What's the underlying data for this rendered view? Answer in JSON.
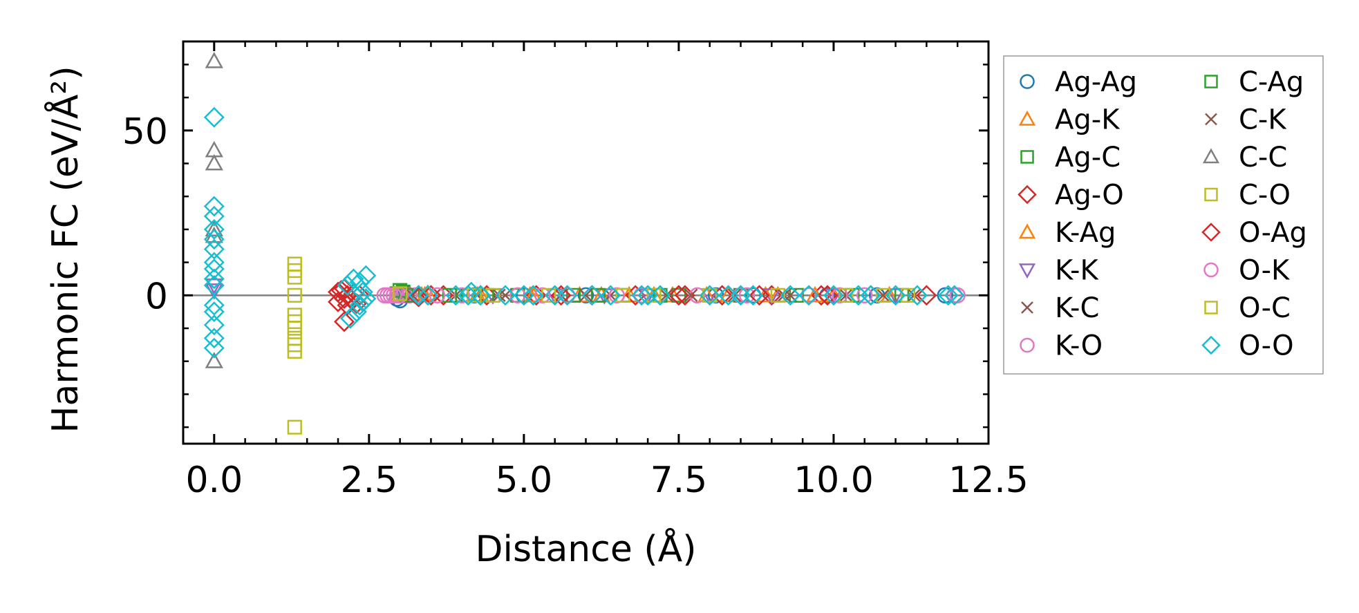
{
  "chart_data": {
    "type": "scatter",
    "xlabel": "Distance (Å)",
    "ylabel": "Harmonic FC (eV/Å²)",
    "xlim": [
      -0.5,
      12.5
    ],
    "ylim": [
      -45,
      77
    ],
    "xticks": [
      0.0,
      2.5,
      5.0,
      7.5,
      10.0,
      12.5
    ],
    "xtick_labels": [
      "0.0",
      "2.5",
      "5.0",
      "7.5",
      "10.0",
      "12.5"
    ],
    "xminor_step": 0.5,
    "yticks": [
      0,
      50
    ],
    "ytick_labels": [
      "0",
      "50"
    ],
    "yminor_step": 10,
    "reference_line_y": 0,
    "legend_position": "outside-right",
    "legend_columns": 2,
    "series": [
      {
        "name": "Ag-Ag",
        "marker": "circle",
        "color": "#1f77b4",
        "points": [
          [
            2.95,
            -1
          ],
          [
            3.0,
            -1.5
          ],
          [
            3.1,
            0.5
          ],
          [
            4.2,
            0
          ],
          [
            5.0,
            0
          ],
          [
            6.0,
            0
          ],
          [
            6.9,
            0
          ],
          [
            8.1,
            0
          ],
          [
            8.7,
            0
          ],
          [
            9.9,
            0
          ],
          [
            10.7,
            0
          ],
          [
            11.8,
            0
          ]
        ]
      },
      {
        "name": "Ag-K",
        "marker": "triangle-up",
        "color": "#ff7f0e",
        "points": [
          [
            3.35,
            0
          ],
          [
            3.45,
            0.5
          ],
          [
            4.3,
            0
          ],
          [
            5.1,
            0
          ],
          [
            5.9,
            0
          ],
          [
            6.7,
            0
          ],
          [
            7.4,
            0
          ],
          [
            8.3,
            0
          ],
          [
            9.1,
            0
          ],
          [
            10.0,
            0
          ],
          [
            10.9,
            0
          ]
        ]
      },
      {
        "name": "Ag-C",
        "marker": "square",
        "color": "#2ca02c",
        "points": [
          [
            2.95,
            0.5
          ],
          [
            3.05,
            1
          ],
          [
            3.2,
            0
          ],
          [
            4.1,
            0
          ],
          [
            4.9,
            0
          ],
          [
            5.8,
            0
          ],
          [
            6.6,
            0
          ],
          [
            7.5,
            0
          ],
          [
            8.5,
            0
          ],
          [
            9.4,
            0
          ],
          [
            10.3,
            0
          ],
          [
            11.1,
            0
          ]
        ]
      },
      {
        "name": "Ag-O",
        "marker": "diamond",
        "color": "#d62728",
        "points": [
          [
            2.0,
            1
          ],
          [
            2.0,
            -2
          ],
          [
            2.1,
            -8
          ],
          [
            2.1,
            2
          ],
          [
            2.15,
            -3
          ],
          [
            2.2,
            -1
          ],
          [
            2.25,
            0.5
          ],
          [
            2.3,
            -2.5
          ],
          [
            2.35,
            0
          ],
          [
            3.3,
            0
          ],
          [
            3.7,
            0
          ],
          [
            4.4,
            0
          ],
          [
            5.2,
            0
          ],
          [
            6.1,
            0
          ],
          [
            6.8,
            0
          ],
          [
            7.6,
            0
          ],
          [
            8.2,
            0
          ],
          [
            9.0,
            0
          ],
          [
            9.8,
            0
          ],
          [
            10.6,
            0
          ],
          [
            11.5,
            0
          ]
        ]
      },
      {
        "name": "K-Ag",
        "marker": "triangle-up",
        "color": "#ff7f0e",
        "points": [
          [
            3.4,
            0
          ],
          [
            4.25,
            0
          ],
          [
            5.15,
            0
          ],
          [
            6.25,
            0
          ],
          [
            7.1,
            0
          ],
          [
            7.95,
            0
          ],
          [
            8.9,
            0
          ],
          [
            9.7,
            0
          ]
        ]
      },
      {
        "name": "K-K",
        "marker": "triangle-down",
        "color": "#9467bd",
        "points": [
          [
            0.0,
            3
          ],
          [
            0.0,
            1.5
          ],
          [
            4.5,
            0
          ],
          [
            5.5,
            0
          ],
          [
            6.3,
            0
          ],
          [
            7.0,
            0
          ],
          [
            8.0,
            0
          ],
          [
            9.0,
            0
          ],
          [
            10.0,
            0
          ],
          [
            11.0,
            0
          ]
        ]
      },
      {
        "name": "K-C",
        "marker": "x",
        "color": "#8c564b",
        "points": [
          [
            3.1,
            0
          ],
          [
            3.9,
            0
          ],
          [
            4.7,
            0
          ],
          [
            5.6,
            0
          ],
          [
            6.4,
            0
          ],
          [
            7.3,
            0
          ],
          [
            8.4,
            0
          ],
          [
            9.3,
            0
          ],
          [
            10.2,
            0
          ],
          [
            11.3,
            0
          ]
        ]
      },
      {
        "name": "K-O",
        "marker": "circle",
        "color": "#e377c2",
        "points": [
          [
            2.75,
            0
          ],
          [
            2.85,
            0
          ],
          [
            2.95,
            0
          ],
          [
            3.05,
            0
          ],
          [
            3.15,
            0
          ],
          [
            3.25,
            0
          ],
          [
            4.0,
            0
          ],
          [
            4.9,
            0
          ],
          [
            5.7,
            0
          ],
          [
            6.5,
            0
          ],
          [
            7.8,
            0
          ],
          [
            8.6,
            0
          ],
          [
            9.6,
            0
          ],
          [
            10.5,
            0
          ],
          [
            12.0,
            0
          ]
        ]
      },
      {
        "name": "C-Ag",
        "marker": "square",
        "color": "#2ca02c",
        "points": [
          [
            3.0,
            1.5
          ],
          [
            3.1,
            0
          ],
          [
            3.8,
            0
          ],
          [
            4.4,
            0
          ],
          [
            6.2,
            0
          ],
          [
            7.2,
            0
          ]
        ]
      },
      {
        "name": "C-K",
        "marker": "x",
        "color": "#8c564b",
        "points": [
          [
            3.2,
            0
          ],
          [
            4.6,
            0
          ],
          [
            6.0,
            0
          ],
          [
            7.7,
            0
          ],
          [
            9.2,
            0
          ],
          [
            10.8,
            0
          ]
        ]
      },
      {
        "name": "C-C",
        "marker": "triangle-up",
        "color": "#7f7f7f",
        "points": [
          [
            0.0,
            71
          ],
          [
            0.0,
            44
          ],
          [
            0.0,
            40
          ],
          [
            0.0,
            20
          ],
          [
            0.0,
            18
          ],
          [
            0.0,
            -20
          ]
        ]
      },
      {
        "name": "C-O",
        "marker": "square",
        "color": "#bcbd22",
        "points": [
          [
            1.3,
            9.5
          ],
          [
            1.3,
            7.5
          ],
          [
            1.3,
            5.5
          ],
          [
            1.3,
            0
          ],
          [
            1.3,
            -6
          ],
          [
            1.3,
            -8
          ],
          [
            1.3,
            -10
          ],
          [
            1.3,
            -13
          ],
          [
            1.3,
            -15
          ],
          [
            1.3,
            -17
          ],
          [
            1.3,
            -40
          ]
        ]
      },
      {
        "name": "O-Ag",
        "marker": "diamond",
        "color": "#d62728",
        "points": [
          [
            2.05,
            1.5
          ],
          [
            2.1,
            -1
          ],
          [
            2.15,
            0
          ],
          [
            3.3,
            -0.5
          ],
          [
            3.5,
            0
          ],
          [
            4.3,
            0
          ],
          [
            5.6,
            0
          ],
          [
            7.5,
            0
          ],
          [
            8.8,
            0
          ],
          [
            9.9,
            0
          ]
        ]
      },
      {
        "name": "O-K",
        "marker": "circle",
        "color": "#e377c2",
        "points": [
          [
            2.8,
            0
          ],
          [
            2.9,
            0
          ],
          [
            3.0,
            0
          ],
          [
            3.6,
            0
          ],
          [
            5.3,
            0
          ],
          [
            6.9,
            0
          ],
          [
            8.5,
            0
          ],
          [
            10.1,
            0
          ],
          [
            11.95,
            0
          ]
        ]
      },
      {
        "name": "O-C",
        "marker": "square",
        "color": "#bcbd22",
        "points": [
          [
            3.0,
            0.5
          ],
          [
            4.2,
            0
          ],
          [
            4.5,
            0
          ],
          [
            5.4,
            0
          ],
          [
            6.6,
            0
          ],
          [
            7.1,
            0
          ],
          [
            8.0,
            0
          ],
          [
            9.1,
            0
          ],
          [
            10.2,
            0
          ],
          [
            10.8,
            0
          ],
          [
            11.2,
            0
          ]
        ]
      },
      {
        "name": "O-O",
        "marker": "diamond",
        "color": "#17becf",
        "points": [
          [
            0.0,
            54
          ],
          [
            0.0,
            27
          ],
          [
            0.0,
            24
          ],
          [
            0.0,
            20
          ],
          [
            0.0,
            17
          ],
          [
            0.0,
            14
          ],
          [
            0.0,
            10
          ],
          [
            0.0,
            8
          ],
          [
            0.0,
            5
          ],
          [
            0.0,
            3
          ],
          [
            0.0,
            -3
          ],
          [
            0.0,
            -5
          ],
          [
            0.0,
            -9
          ],
          [
            0.0,
            -13
          ],
          [
            0.0,
            -16
          ],
          [
            2.15,
            3
          ],
          [
            2.2,
            -7
          ],
          [
            2.25,
            5
          ],
          [
            2.3,
            -5
          ],
          [
            2.35,
            4
          ],
          [
            2.35,
            -3
          ],
          [
            2.4,
            1
          ],
          [
            2.4,
            -2
          ],
          [
            2.45,
            6
          ],
          [
            2.45,
            -1
          ],
          [
            3.3,
            0
          ],
          [
            3.45,
            0
          ],
          [
            3.9,
            0
          ],
          [
            4.1,
            0
          ],
          [
            4.15,
            1
          ],
          [
            4.3,
            0
          ],
          [
            4.7,
            0
          ],
          [
            5.0,
            0
          ],
          [
            5.15,
            0
          ],
          [
            5.5,
            0
          ],
          [
            5.7,
            0
          ],
          [
            6.1,
            0
          ],
          [
            6.4,
            0
          ],
          [
            6.9,
            0
          ],
          [
            7.0,
            0
          ],
          [
            7.2,
            0
          ],
          [
            8.0,
            0
          ],
          [
            8.3,
            0
          ],
          [
            8.5,
            0
          ],
          [
            8.7,
            0
          ],
          [
            9.3,
            0
          ],
          [
            9.6,
            0
          ],
          [
            10.0,
            0
          ],
          [
            10.4,
            0
          ],
          [
            10.6,
            0
          ],
          [
            11.0,
            0
          ],
          [
            11.35,
            0
          ],
          [
            11.85,
            0
          ],
          [
            11.95,
            0
          ]
        ]
      }
    ]
  }
}
